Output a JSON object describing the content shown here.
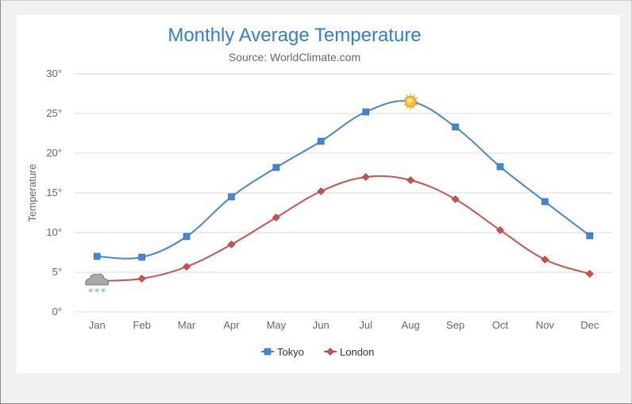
{
  "chart_data": {
    "type": "line",
    "title": "Monthly Average Temperature",
    "subtitle": "Source: WorldClimate.com",
    "ylabel": "Temperature",
    "xlabel": "",
    "categories": [
      "Jan",
      "Feb",
      "Mar",
      "Apr",
      "May",
      "Jun",
      "Jul",
      "Aug",
      "Sep",
      "Oct",
      "Nov",
      "Dec"
    ],
    "y_ticks": [
      "0°",
      "5°",
      "10°",
      "15°",
      "20°",
      "25°",
      "30°"
    ],
    "ylim": [
      0,
      30
    ],
    "grid": true,
    "legend_position": "bottom-center",
    "series": [
      {
        "name": "Tokyo",
        "color": "#4286d8",
        "marker": "square",
        "values": [
          7.0,
          6.9,
          9.5,
          14.5,
          18.2,
          21.5,
          25.2,
          26.5,
          23.3,
          18.3,
          13.9,
          9.6
        ],
        "special_marker": {
          "index": 7,
          "icon": "sun-icon"
        }
      },
      {
        "name": "London",
        "color": "#d0504c",
        "marker": "diamond",
        "values": [
          3.9,
          4.2,
          5.7,
          8.5,
          11.9,
          15.2,
          17.0,
          16.6,
          14.2,
          10.3,
          6.6,
          4.8
        ],
        "special_marker": {
          "index": 0,
          "icon": "snow-cloud-icon"
        }
      }
    ]
  }
}
